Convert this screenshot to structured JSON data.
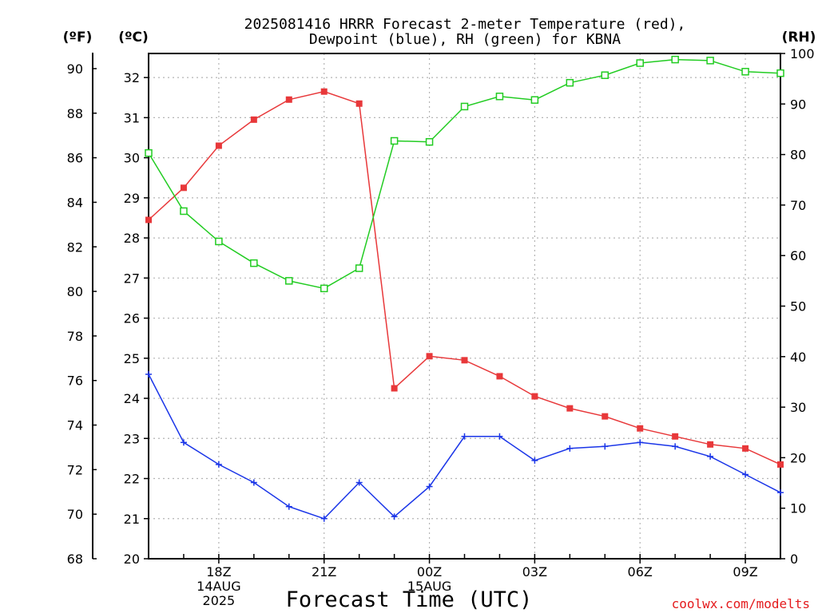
{
  "chart_data": {
    "type": "line",
    "title_line1": "2025081416 HRRR Forecast 2-meter Temperature (red),",
    "title_line2": "Dewpoint (blue), RH (green) for KBNA",
    "xlabel": "Forecast Time (UTC)",
    "credit": "coolwx.com/modelts",
    "units": {
      "fahrenheit": "(ºF)",
      "celsius": "(ºC)",
      "rh": "(RH)"
    },
    "x_hours": [
      16,
      17,
      18,
      19,
      20,
      21,
      22,
      23,
      24,
      25,
      26,
      27,
      28,
      29,
      30,
      31,
      32,
      33,
      34
    ],
    "x_tick_labels": [
      {
        "hour": 18,
        "lines": [
          "18Z",
          "14AUG",
          "2025"
        ]
      },
      {
        "hour": 21,
        "lines": [
          "21Z"
        ]
      },
      {
        "hour": 24,
        "lines": [
          "00Z",
          "15AUG"
        ]
      },
      {
        "hour": 27,
        "lines": [
          "03Z"
        ]
      },
      {
        "hour": 30,
        "lines": [
          "06Z"
        ]
      },
      {
        "hour": 33,
        "lines": [
          "09Z"
        ]
      }
    ],
    "y_celsius": {
      "ylim": [
        20,
        32.6
      ],
      "ticks": [
        20,
        21,
        22,
        23,
        24,
        25,
        26,
        27,
        28,
        29,
        30,
        31,
        32
      ]
    },
    "y_fahrenheit": {
      "ticks": [
        68,
        70,
        72,
        74,
        76,
        78,
        80,
        82,
        84,
        86,
        88,
        90
      ]
    },
    "y_rh": {
      "ylim": [
        0,
        100
      ],
      "ticks": [
        0,
        10,
        20,
        30,
        40,
        50,
        60,
        70,
        80,
        90,
        100
      ]
    },
    "grid": true,
    "series": [
      {
        "color": "#e8383a",
        "axis": "celsius",
        "marker": "filled-square",
        "values": [
          28.45,
          29.25,
          30.3,
          30.95,
          31.45,
          31.65,
          31.35,
          24.25,
          25.05,
          24.95,
          24.55,
          24.05,
          23.75,
          23.55,
          23.25,
          23.05,
          22.85,
          22.75,
          22.35
        ]
      },
      {
        "color": "#1a35e8",
        "axis": "celsius",
        "marker": "plus",
        "values": [
          24.6,
          22.9,
          22.35,
          21.9,
          21.3,
          21.0,
          21.9,
          21.05,
          21.8,
          23.05,
          23.05,
          22.45,
          22.75,
          22.8,
          22.9,
          22.8,
          22.55,
          22.1,
          21.65
        ]
      },
      {
        "color": "#22cc22",
        "axis": "rh",
        "marker": "open-square",
        "values": [
          80.3,
          68.8,
          62.8,
          58.5,
          55.0,
          53.5,
          57.5,
          82.7,
          82.5,
          89.5,
          91.5,
          90.8,
          94.2,
          95.7,
          98.1,
          98.8,
          98.6,
          96.4,
          96.1
        ]
      }
    ]
  }
}
